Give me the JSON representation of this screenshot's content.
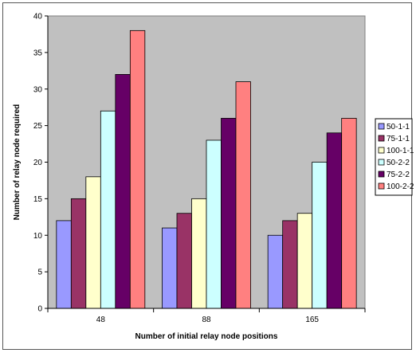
{
  "chart_data": {
    "type": "bar",
    "title": "",
    "xlabel": "Number of initial relay node positions",
    "ylabel": "Number of relay node required",
    "categories": [
      "48",
      "88",
      "165"
    ],
    "ylim": [
      0,
      40
    ],
    "yticks": [
      0,
      5,
      10,
      15,
      20,
      25,
      30,
      35,
      40
    ],
    "grid": false,
    "legend_position": "right",
    "plot_background": "#c0c0c0",
    "series": [
      {
        "name": "50-1-1",
        "color": "#9999ff",
        "values": [
          12,
          11,
          10
        ]
      },
      {
        "name": "75-1-1",
        "color": "#993366",
        "values": [
          15,
          13,
          12
        ]
      },
      {
        "name": "100-1-1",
        "color": "#ffffcc",
        "values": [
          18,
          15,
          13
        ]
      },
      {
        "name": "50-2-2",
        "color": "#ccffff",
        "values": [
          27,
          23,
          20
        ]
      },
      {
        "name": "75-2-2",
        "color": "#660066",
        "values": [
          32,
          26,
          24
        ]
      },
      {
        "name": "100-2-2",
        "color": "#ff8080",
        "values": [
          38,
          31,
          26
        ]
      }
    ]
  }
}
